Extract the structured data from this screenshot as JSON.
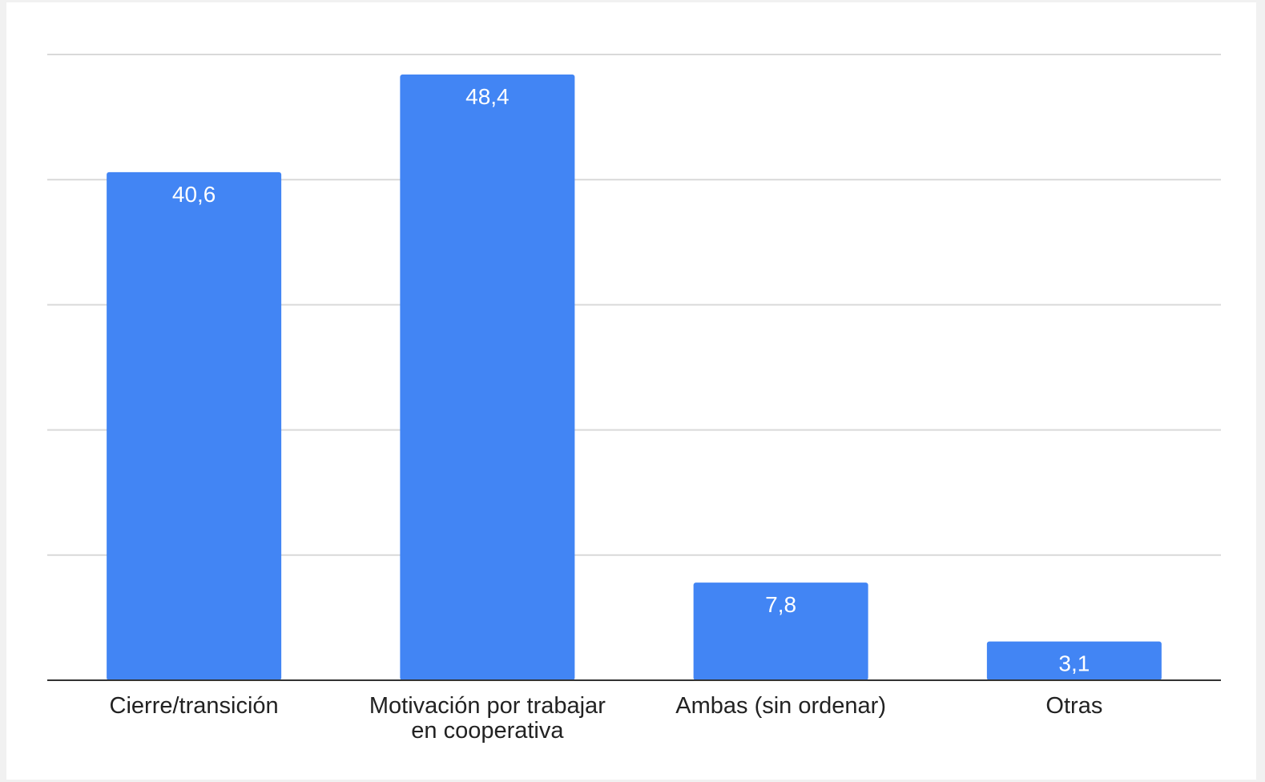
{
  "chart_data": {
    "type": "bar",
    "categories": [
      "Cierre/transición",
      "Motivación por trabajar en cooperativa",
      "Ambas (sin ordenar)",
      "Otras"
    ],
    "category_label_lines": [
      [
        "Cierre/transición"
      ],
      [
        "Motivación por trabajar",
        "en cooperativa"
      ],
      [
        "Ambas (sin ordenar)"
      ],
      [
        "Otras"
      ]
    ],
    "values": [
      40.6,
      48.4,
      7.8,
      3.1
    ],
    "data_labels": [
      "40,6",
      "48,4",
      "7,8",
      "3,1"
    ],
    "title": "",
    "xlabel": "",
    "ylabel": "",
    "ylim": [
      0,
      50
    ],
    "grid": true,
    "legend": "none",
    "bar_color": "#4285f4",
    "grid_color": "#d9d9d9",
    "axis_color": "#333333"
  }
}
